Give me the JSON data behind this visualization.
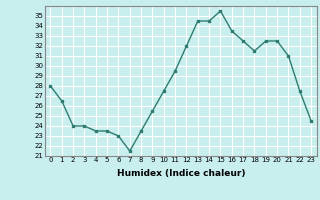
{
  "x": [
    0,
    1,
    2,
    3,
    4,
    5,
    6,
    7,
    8,
    9,
    10,
    11,
    12,
    13,
    14,
    15,
    16,
    17,
    18,
    19,
    20,
    21,
    22,
    23
  ],
  "y": [
    28.0,
    26.5,
    24.0,
    24.0,
    23.5,
    23.5,
    23.0,
    21.5,
    23.5,
    25.5,
    27.5,
    29.5,
    32.0,
    34.5,
    34.5,
    35.5,
    33.5,
    32.5,
    31.5,
    32.5,
    32.5,
    31.0,
    27.5,
    24.5
  ],
  "xlabel": "Humidex (Indice chaleur)",
  "ylim": [
    21,
    36
  ],
  "xlim": [
    -0.5,
    23.5
  ],
  "yticks": [
    21,
    22,
    23,
    24,
    25,
    26,
    27,
    28,
    29,
    30,
    31,
    32,
    33,
    34,
    35
  ],
  "xticks": [
    0,
    1,
    2,
    3,
    4,
    5,
    6,
    7,
    8,
    9,
    10,
    11,
    12,
    13,
    14,
    15,
    16,
    17,
    18,
    19,
    20,
    21,
    22,
    23
  ],
  "line_color": "#2e7d6e",
  "marker": "s",
  "marker_size": 2,
  "bg_color": "#c8eeee",
  "grid_color": "#ffffff",
  "spine_color": "#888888",
  "tick_fontsize": 5,
  "xlabel_fontsize": 6.5
}
